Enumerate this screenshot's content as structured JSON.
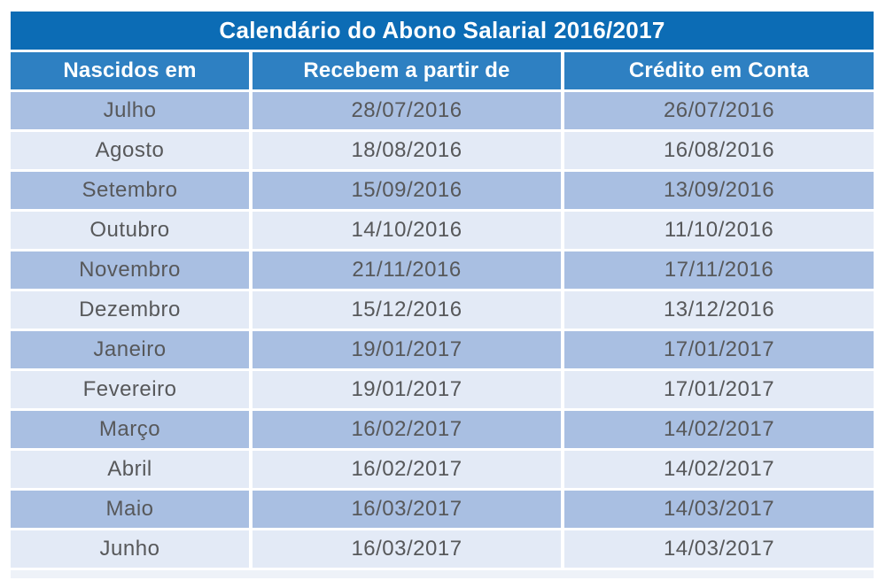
{
  "colors": {
    "title_bg": "#0c6cb5",
    "header_bg": "#2e80c2",
    "header_text": "#ffffff",
    "row_dark": "#a9bfe2",
    "row_light": "#e3eaf6",
    "cell_text": "#57585a",
    "page_bg": "#ffffff",
    "strip_bg": "#eef2f8"
  },
  "chart_data": {
    "type": "table",
    "title": "Calendário do Abono Salarial 2016/2017",
    "columns": [
      "Nascidos em",
      "Recebem a partir de",
      "Crédito em Conta"
    ],
    "rows": [
      [
        "Julho",
        "28/07/2016",
        "26/07/2016"
      ],
      [
        "Agosto",
        "18/08/2016",
        "16/08/2016"
      ],
      [
        "Setembro",
        "15/09/2016",
        "13/09/2016"
      ],
      [
        "Outubro",
        "14/10/2016",
        "11/10/2016"
      ],
      [
        "Novembro",
        "21/11/2016",
        "17/11/2016"
      ],
      [
        "Dezembro",
        "15/12/2016",
        "13/12/2016"
      ],
      [
        "Janeiro",
        "19/01/2017",
        "17/01/2017"
      ],
      [
        "Fevereiro",
        "19/01/2017",
        "17/01/2017"
      ],
      [
        "Março",
        "16/02/2017",
        "14/02/2017"
      ],
      [
        "Abril",
        "16/02/2017",
        "14/02/2017"
      ],
      [
        "Maio",
        "16/03/2017",
        "14/03/2017"
      ],
      [
        "Junho",
        "16/03/2017",
        "14/03/2017"
      ]
    ],
    "layout": {
      "striped": true,
      "first_data_row_shade": "dark",
      "text_align": "center"
    }
  }
}
